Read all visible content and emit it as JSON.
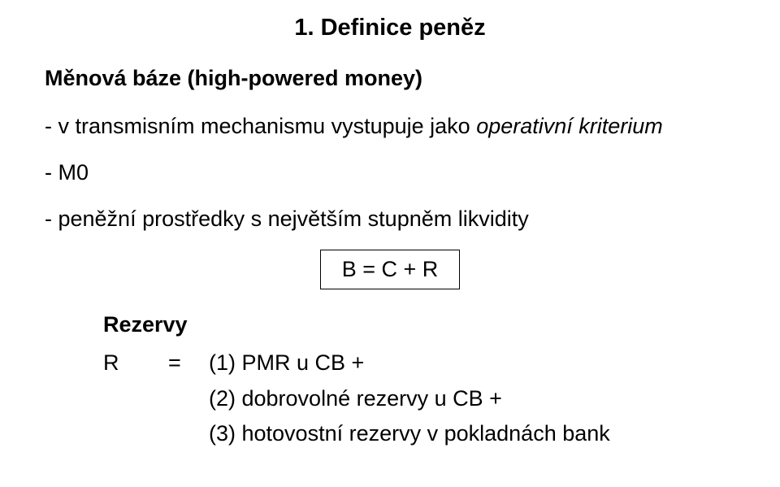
{
  "title": "1. Definice peněz",
  "heading": "Měnová báze (high-powered money)",
  "line1_prefix": "- v transmisním mechanismu vystupuje jako ",
  "line1_italic": "operativní kriterium",
  "line2": "- M0",
  "line3": "- peněžní prostředky s největším stupněm likvidity",
  "formula": "B = C + R",
  "reserves_label": "Rezervy",
  "eq_lhs": "R",
  "eq_sign": "=",
  "eq_rhs1": "(1) PMR u CB +",
  "eq_rhs2": "(2) dobrovolné rezervy u CB +",
  "eq_rhs3": "(3) hotovostní rezervy v pokladnách bank",
  "colors": {
    "text": "#000000",
    "background": "#ffffff",
    "border": "#000000"
  },
  "font": {
    "family": "Verdana/Tahoma",
    "title_size_pt": 22,
    "body_size_pt": 20,
    "title_weight": 700,
    "body_weight": 400
  }
}
